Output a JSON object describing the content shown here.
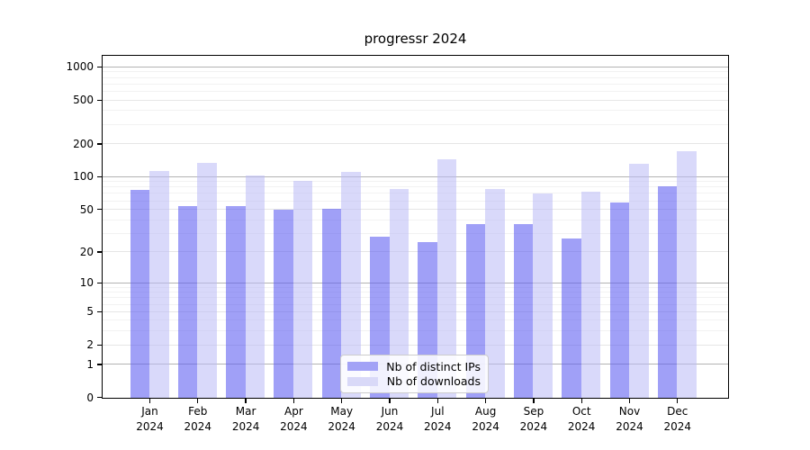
{
  "chart_data": {
    "type": "bar",
    "title": "progressr 2024",
    "categories": [
      "Jan",
      "Feb",
      "Mar",
      "Apr",
      "May",
      "Jun",
      "Jul",
      "Aug",
      "Sep",
      "Oct",
      "Nov",
      "Dec"
    ],
    "category_year": "2024",
    "series": [
      {
        "name": "Nb of distinct IPs",
        "color": "rgba(85,85,240,0.56)",
        "swatch_color": "#a2a2f6",
        "values": [
          76,
          54,
          54,
          50,
          51,
          28,
          25,
          37,
          37,
          27,
          58,
          82
        ]
      },
      {
        "name": "Nb of downloads",
        "color": "rgba(185,185,245,0.55)",
        "swatch_color": "#d9d9f8",
        "values": [
          113,
          135,
          103,
          92,
          112,
          78,
          146,
          77,
          71,
          74,
          133,
          172
        ]
      }
    ],
    "y_ticks": [
      0,
      1,
      2,
      5,
      10,
      20,
      50,
      100,
      200,
      500,
      1000
    ],
    "y_scale": "log1p",
    "ylim": [
      0,
      1250
    ],
    "grid": true,
    "legend_position": "inside-bottom-center"
  },
  "colors": {
    "axis": "#000000",
    "grid_decade": "#b3b3b3",
    "grid_minor_labeled": "#e6e6e6",
    "grid_minor_faint": "#f2f2f2",
    "background": "#ffffff",
    "legend_border": "#cccccc"
  }
}
